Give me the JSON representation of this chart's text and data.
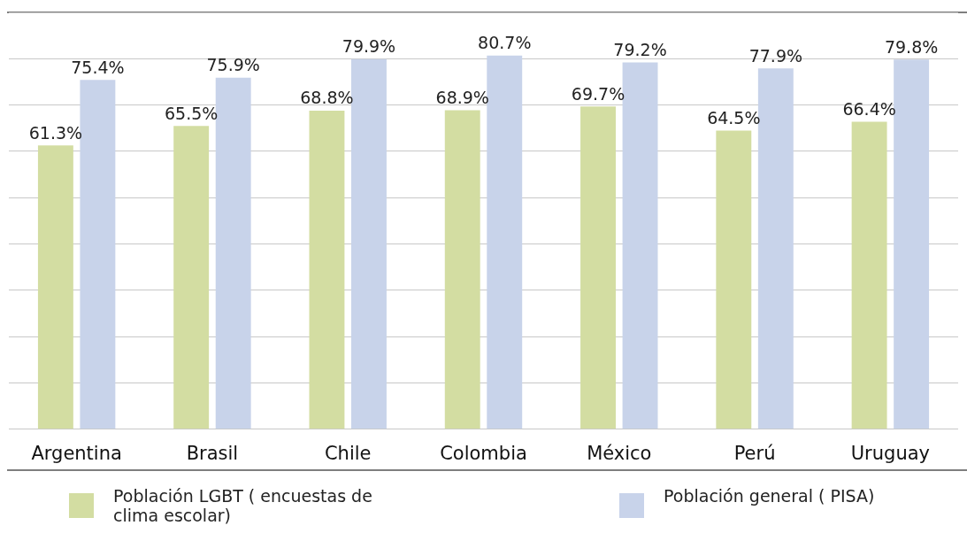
{
  "chart_data": {
    "type": "bar",
    "categories": [
      "Argentina",
      "Brasil",
      "Chile",
      "Colombia",
      "México",
      "Perú",
      "Uruguay"
    ],
    "series": [
      {
        "name": "Población LGBT ( encuestas de clima escolar)",
        "color": "#d3dda2",
        "values": [
          61.3,
          65.5,
          68.8,
          68.9,
          69.7,
          64.5,
          66.4
        ],
        "value_labels": [
          "61.3%",
          "65.5%",
          "68.8%",
          "68.9%",
          "69.7%",
          "64.5%",
          "66.4%"
        ]
      },
      {
        "name": "Población general ( PISA)",
        "color": "#c8d3ea",
        "values": [
          75.4,
          75.9,
          79.9,
          80.7,
          79.2,
          77.9,
          79.8
        ],
        "value_labels": [
          "75.4%",
          "75.9%",
          "79.9%",
          "80.7%",
          "79.2%",
          "77.9%",
          "79.8%"
        ]
      }
    ],
    "tick_labels": "x",
    "grid": "y",
    "legend": "bottom"
  }
}
